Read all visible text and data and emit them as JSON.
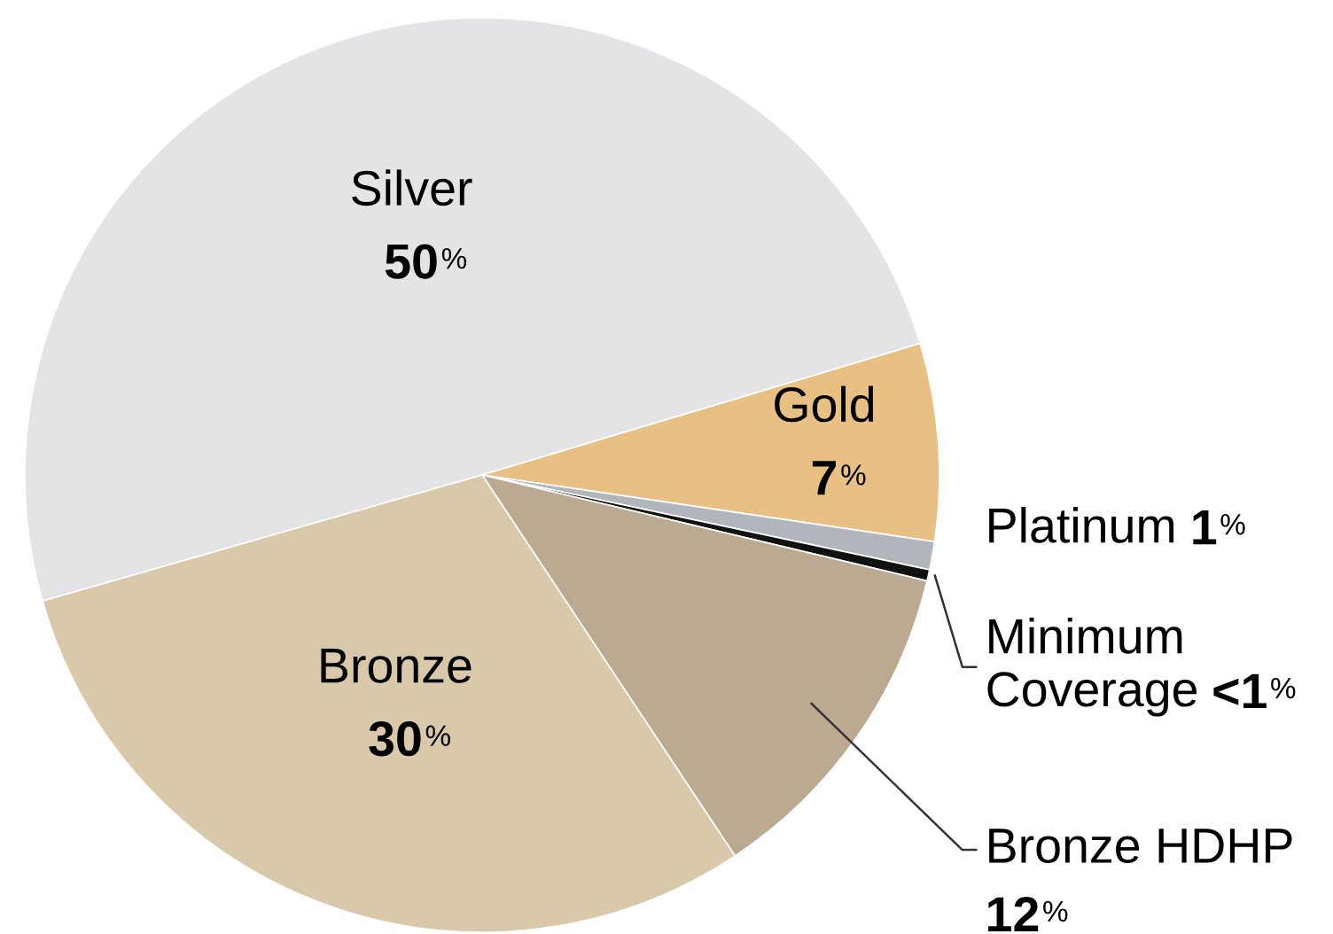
{
  "chart_data": {
    "type": "pie",
    "categories": [
      "Silver",
      "Gold",
      "Platinum",
      "Minimum Coverage",
      "Bronze HDHP",
      "Bronze"
    ],
    "values": [
      50,
      7,
      1,
      0.4,
      12,
      30
    ],
    "value_labels": [
      "50%",
      "7%",
      "1%",
      "<1%",
      "12%",
      "30%"
    ],
    "colors": [
      "#e4e4e6",
      "#e9c083",
      "#b2b5bb",
      "#111111",
      "#bba991",
      "#d9c8aa"
    ]
  }
}
